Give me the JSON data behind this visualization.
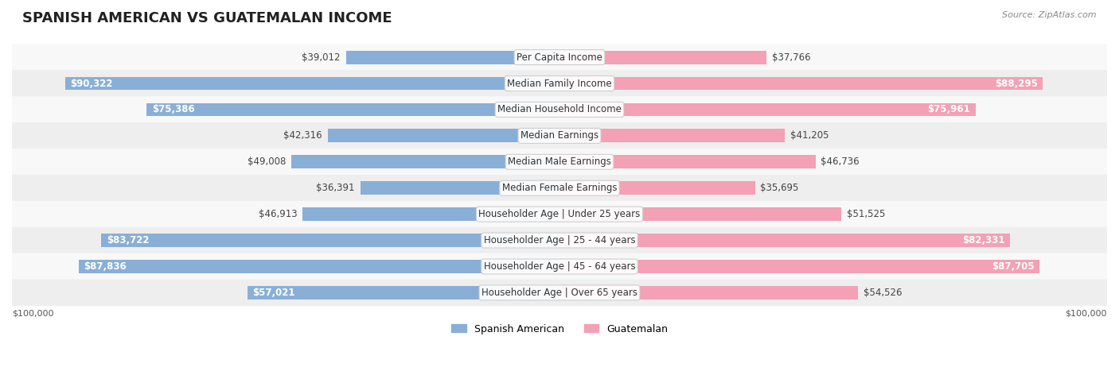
{
  "title": "SPANISH AMERICAN VS GUATEMALAN INCOME",
  "source": "Source: ZipAtlas.com",
  "categories": [
    "Per Capita Income",
    "Median Family Income",
    "Median Household Income",
    "Median Earnings",
    "Median Male Earnings",
    "Median Female Earnings",
    "Householder Age | Under 25 years",
    "Householder Age | 25 - 44 years",
    "Householder Age | 45 - 64 years",
    "Householder Age | Over 65 years"
  ],
  "spanish_american": [
    39012,
    90322,
    75386,
    42316,
    49008,
    36391,
    46913,
    83722,
    87836,
    57021
  ],
  "guatemalan": [
    37766,
    88295,
    75961,
    41205,
    46736,
    35695,
    51525,
    82331,
    87705,
    54526
  ],
  "spanish_american_labels": [
    "$39,012",
    "$90,322",
    "$75,386",
    "$42,316",
    "$49,008",
    "$36,391",
    "$46,913",
    "$83,722",
    "$87,836",
    "$57,021"
  ],
  "guatemalan_labels": [
    "$37,766",
    "$88,295",
    "$75,961",
    "$41,205",
    "$46,736",
    "$35,695",
    "$51,525",
    "$82,331",
    "$87,705",
    "$54,526"
  ],
  "max_value": 100000,
  "color_spanish": "#89afd7",
  "color_guatemalan": "#f4a0b5",
  "color_spanish_dark": "#6b9ac7",
  "color_guatemalan_dark": "#f080a0",
  "bar_bg_color": "#f0f0f0",
  "row_bg_even": "#f8f8f8",
  "row_bg_odd": "#eeeeee",
  "title_fontsize": 13,
  "label_fontsize": 8.5,
  "category_fontsize": 8.5,
  "axis_label_fontsize": 8
}
